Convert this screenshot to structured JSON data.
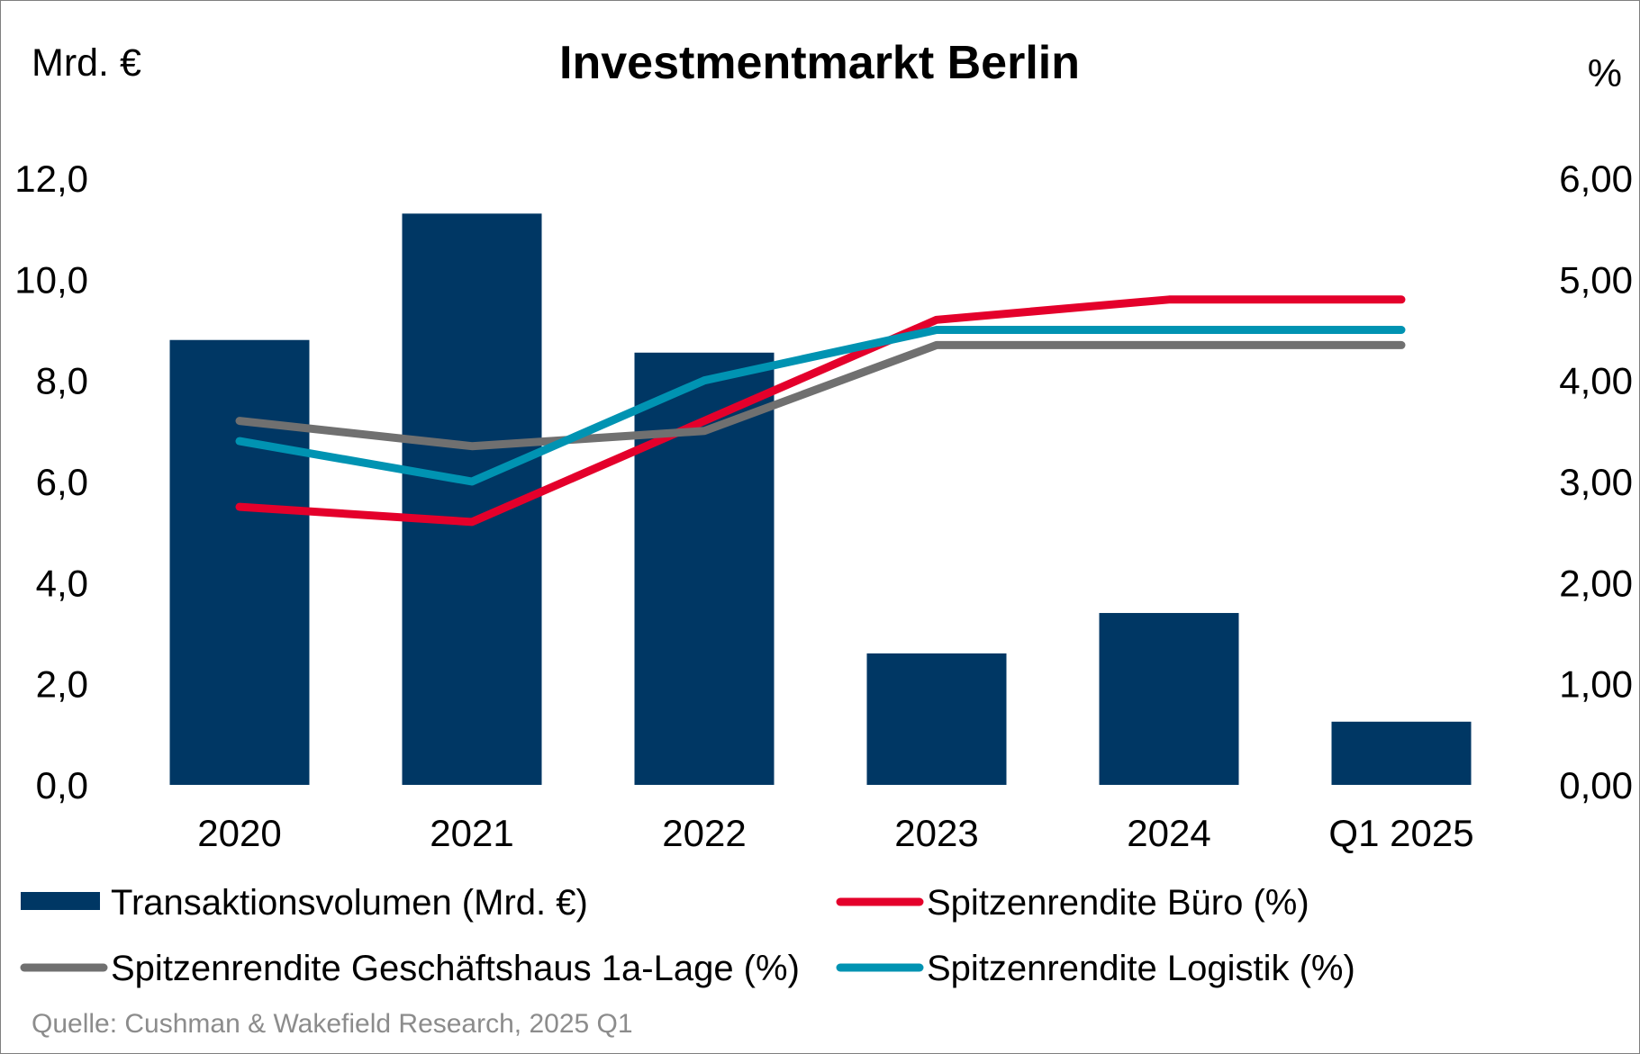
{
  "chart_data": {
    "type": "bar",
    "title": "Investmentmarkt Berlin",
    "y_left_label": "Mrd. €",
    "y_right_label": "%",
    "categories": [
      "2020",
      "2021",
      "2022",
      "2023",
      "2024",
      "Q1 2025"
    ],
    "y_left_ticks": [
      "0,0",
      "2,0",
      "4,0",
      "6,0",
      "8,0",
      "10,0",
      "12,0"
    ],
    "y_right_ticks": [
      "0,00",
      "1,00",
      "2,00",
      "3,00",
      "4,00",
      "5,00",
      "6,00"
    ],
    "ylim_left": [
      0,
      12
    ],
    "ylim_right": [
      0,
      6
    ],
    "series": [
      {
        "name": "Transaktionsvolumen (Mrd. €)",
        "kind": "bar",
        "axis": "left",
        "color": "#003764",
        "values": [
          8.8,
          11.3,
          8.55,
          2.6,
          3.4,
          1.25
        ]
      },
      {
        "name": "Spitzenrendite Büro (%)",
        "kind": "line",
        "axis": "right",
        "color": "#e4002b",
        "values": [
          2.75,
          2.6,
          3.6,
          4.6,
          4.8,
          4.8
        ]
      },
      {
        "name": "Spitzenrendite Geschäftshaus 1a-Lage (%)",
        "kind": "line",
        "axis": "right",
        "color": "#707070",
        "values": [
          3.6,
          3.35,
          3.5,
          4.35,
          4.35,
          4.35
        ]
      },
      {
        "name": "Spitzenrendite Logistik (%)",
        "kind": "line",
        "axis": "right",
        "color": "#0093b2",
        "values": [
          3.4,
          3.0,
          4.0,
          4.5,
          4.5,
          4.5
        ]
      }
    ],
    "legend_position": "bottom",
    "grid": false
  },
  "source": "Quelle: Cushman & Wakefield Research, 2025 Q1"
}
